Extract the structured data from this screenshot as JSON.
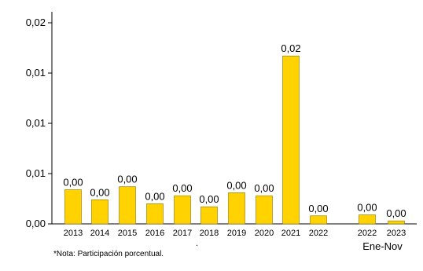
{
  "chart_data": {
    "type": "bar",
    "categories": [
      "2013",
      "2014",
      "2015",
      "2016",
      "2017",
      "2018",
      "2019",
      "2020",
      "2021",
      "2022",
      "2022",
      "2023"
    ],
    "values": [
      0.0034,
      0.0024,
      0.0037,
      0.002,
      0.0028,
      0.0017,
      0.0031,
      0.0028,
      0.0167,
      0.0008,
      0.0009,
      0.0003
    ],
    "data_labels": [
      "0,00",
      "0,00",
      "0,00",
      "0,00",
      "0,00",
      "0,00",
      "0,00",
      "0,00",
      "0,02",
      "0,00",
      "0,00",
      "0,00"
    ],
    "group_label": "Ene-Nov",
    "y_tick_labels": [
      "0,00",
      "0,01",
      "0,01",
      "0,01",
      "0,02"
    ],
    "y_ticks": [
      0,
      0.005,
      0.01,
      0.015,
      0.02
    ],
    "ylim": [
      0,
      0.02
    ],
    "bar_color": "#FFD200",
    "bar_edge_color": "#8a7400",
    "grid": false
  },
  "footnote": "*Nota: Participación porcentual.",
  "stray_mark": "."
}
